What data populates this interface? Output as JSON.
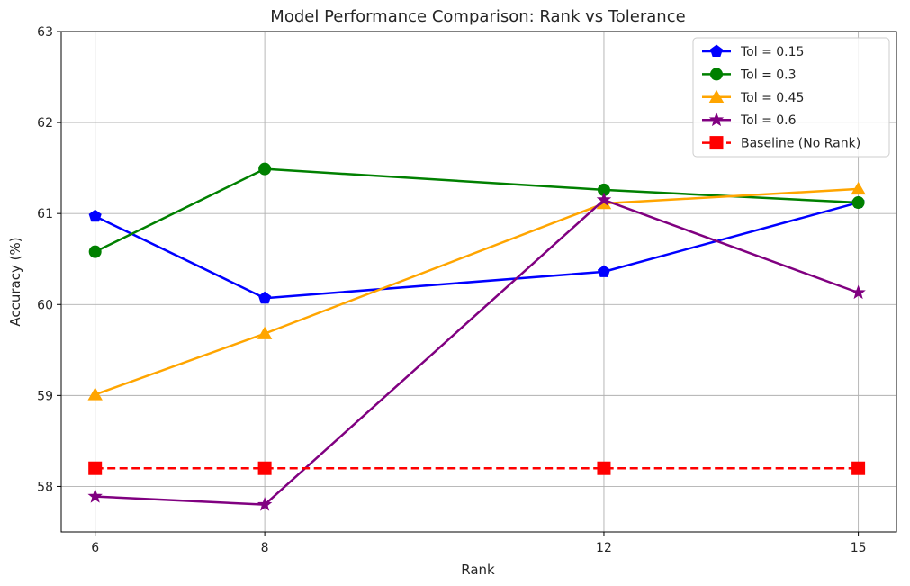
{
  "chart_data": {
    "type": "line",
    "title": "Model Performance Comparison: Rank vs Tolerance",
    "xlabel": "Rank",
    "ylabel": "Accuracy (%)",
    "x": [
      6,
      8,
      12,
      15
    ],
    "xlim": [
      5.6,
      15.45
    ],
    "ylim": [
      57.5,
      63
    ],
    "yticks": [
      58,
      59,
      60,
      61,
      62,
      63
    ],
    "grid": true,
    "legend_position": "top-right",
    "series": [
      {
        "name": "Tol = 0.15",
        "color": "#0000ff",
        "marker": "pentagon",
        "dashed": false,
        "values": [
          60.97,
          60.07,
          60.36,
          61.12
        ]
      },
      {
        "name": "Tol = 0.3",
        "color": "#008000",
        "marker": "circle",
        "dashed": false,
        "values": [
          60.58,
          61.49,
          61.26,
          61.12
        ]
      },
      {
        "name": "Tol = 0.45",
        "color": "#ffa500",
        "marker": "triangle",
        "dashed": false,
        "values": [
          59.01,
          59.68,
          61.11,
          61.27
        ]
      },
      {
        "name": "Tol = 0.6",
        "color": "#800080",
        "marker": "star",
        "dashed": false,
        "values": [
          57.89,
          57.8,
          61.15,
          60.13
        ]
      },
      {
        "name": "Baseline (No Rank)",
        "color": "#ff0000",
        "marker": "square",
        "dashed": true,
        "values": [
          58.2,
          58.2,
          58.2,
          58.2
        ]
      }
    ]
  }
}
